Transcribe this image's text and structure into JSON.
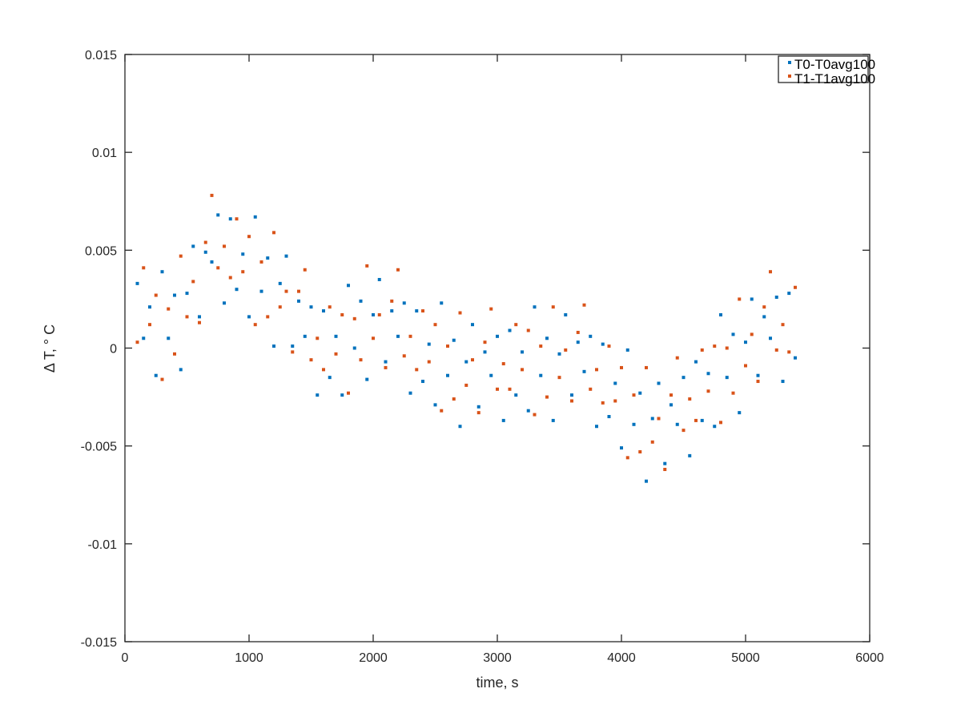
{
  "chart_data": {
    "type": "scatter",
    "title": "",
    "xlabel": "time, s",
    "ylabel": "Δ T,  ° C",
    "xlim": [
      0,
      6000
    ],
    "ylim": [
      -0.015,
      0.015
    ],
    "xticks": [
      0,
      1000,
      2000,
      3000,
      4000,
      5000,
      6000
    ],
    "xtick_labels": [
      "0",
      "1000",
      "2000",
      "3000",
      "4000",
      "5000",
      "6000"
    ],
    "yticks": [
      -0.015,
      -0.01,
      -0.005,
      0,
      0.005,
      0.01,
      0.015
    ],
    "ytick_labels": [
      "-0.015",
      "-0.01",
      "-0.005",
      "0",
      "0.005",
      "0.01",
      "0.015"
    ],
    "grid": false,
    "legend_position": "top-right",
    "x": [
      100,
      150,
      200,
      250,
      300,
      350,
      400,
      450,
      500,
      550,
      600,
      650,
      700,
      750,
      800,
      850,
      900,
      950,
      1000,
      1050,
      1100,
      1150,
      1200,
      1250,
      1300,
      1350,
      1400,
      1450,
      1500,
      1550,
      1600,
      1650,
      1700,
      1750,
      1800,
      1850,
      1900,
      1950,
      2000,
      2050,
      2100,
      2150,
      2200,
      2250,
      2300,
      2350,
      2400,
      2450,
      2500,
      2550,
      2600,
      2650,
      2700,
      2750,
      2800,
      2850,
      2900,
      2950,
      3000,
      3050,
      3100,
      3150,
      3200,
      3250,
      3300,
      3350,
      3400,
      3450,
      3500,
      3550,
      3600,
      3650,
      3700,
      3750,
      3800,
      3850,
      3900,
      3950,
      4000,
      4050,
      4100,
      4150,
      4200,
      4250,
      4300,
      4350,
      4400,
      4450,
      4500,
      4550,
      4600,
      4650,
      4700,
      4750,
      4800,
      4850,
      4900,
      4950,
      5000,
      5050,
      5100,
      5150,
      5200,
      5250,
      5300,
      5350,
      5400
    ],
    "series": [
      {
        "name": "T0-T0avg100",
        "color": "#0072bd",
        "values": [
          0.0033,
          0.0005,
          0.0021,
          -0.0014,
          0.0039,
          0.0005,
          0.0027,
          -0.0011,
          0.0028,
          0.0052,
          0.0016,
          0.0049,
          0.0044,
          0.0068,
          0.0023,
          0.0066,
          0.003,
          0.0048,
          0.0016,
          0.0067,
          0.0029,
          0.0046,
          0.0001,
          0.0033,
          0.0047,
          0.0001,
          0.0024,
          0.0006,
          0.0021,
          -0.0024,
          0.0019,
          -0.0015,
          0.0006,
          -0.0024,
          0.0032,
          0,
          0.0024,
          -0.0016,
          0.0017,
          0.0035,
          -0.0007,
          0.0019,
          0.0006,
          0.0023,
          -0.0023,
          0.0019,
          -0.0017,
          0.0002,
          -0.0029,
          0.0023,
          -0.0014,
          0.0004,
          -0.004,
          -0.0007,
          0.0012,
          -0.003,
          -0.0002,
          -0.0014,
          0.0006,
          -0.0037,
          0.0009,
          -0.0024,
          -0.0002,
          -0.0032,
          0.0021,
          -0.0014,
          0.0005,
          -0.0037,
          -0.0003,
          0.0017,
          -0.0024,
          0.0003,
          -0.0012,
          0.0006,
          -0.004,
          0.0002,
          -0.0035,
          -0.0018,
          -0.0051,
          -0.0001,
          -0.0039,
          -0.0023,
          -0.0068,
          -0.0036,
          -0.0018,
          -0.0059,
          -0.0029,
          -0.0039,
          -0.0015,
          -0.0055,
          -0.0007,
          -0.0037,
          -0.0013,
          -0.004,
          0.0017,
          -0.0015,
          0.0007,
          -0.0033,
          0.0003,
          0.0025,
          -0.0014,
          0.0016,
          0.0005,
          0.0026,
          -0.0017,
          0.0028,
          -0.0005
        ]
      },
      {
        "name": "T1-T1avg100",
        "color": "#d95319",
        "values": [
          0.0003,
          0.0041,
          0.0012,
          0.0027,
          -0.0016,
          0.002,
          -0.0003,
          0.0047,
          0.0016,
          0.0034,
          0.0013,
          0.0054,
          0.0078,
          0.0041,
          0.0052,
          0.0036,
          0.0066,
          0.0039,
          0.0057,
          0.0012,
          0.0044,
          0.0016,
          0.0059,
          0.0021,
          0.0029,
          -0.0002,
          0.0029,
          0.004,
          -0.0006,
          0.0005,
          -0.0011,
          0.0021,
          -0.0003,
          0.0017,
          -0.0023,
          0.0015,
          -0.0006,
          0.0042,
          0.0005,
          0.0017,
          -0.001,
          0.0024,
          0.004,
          -0.0004,
          0.0006,
          -0.0011,
          0.0019,
          -0.0007,
          0.0012,
          -0.0032,
          0.0001,
          -0.0026,
          0.0018,
          -0.0019,
          -0.0006,
          -0.0033,
          0.0003,
          0.002,
          -0.0021,
          -0.0008,
          -0.0021,
          0.0012,
          -0.0011,
          0.0009,
          -0.0034,
          0.0001,
          -0.0025,
          0.0021,
          -0.0015,
          -0.0001,
          -0.0027,
          0.0008,
          0.0022,
          -0.0021,
          -0.0011,
          -0.0028,
          0.0001,
          -0.0027,
          -0.001,
          -0.0056,
          -0.0024,
          -0.0053,
          -0.001,
          -0.0048,
          -0.0036,
          -0.0062,
          -0.0024,
          -0.0005,
          -0.0042,
          -0.0026,
          -0.0037,
          -0.0001,
          -0.0022,
          0.0001,
          -0.0038,
          0,
          -0.0023,
          0.0025,
          -0.0009,
          0.0007,
          -0.0017,
          0.0021,
          0.0039,
          -0.0001,
          0.0012,
          -0.0002,
          0.0031
        ]
      }
    ]
  }
}
